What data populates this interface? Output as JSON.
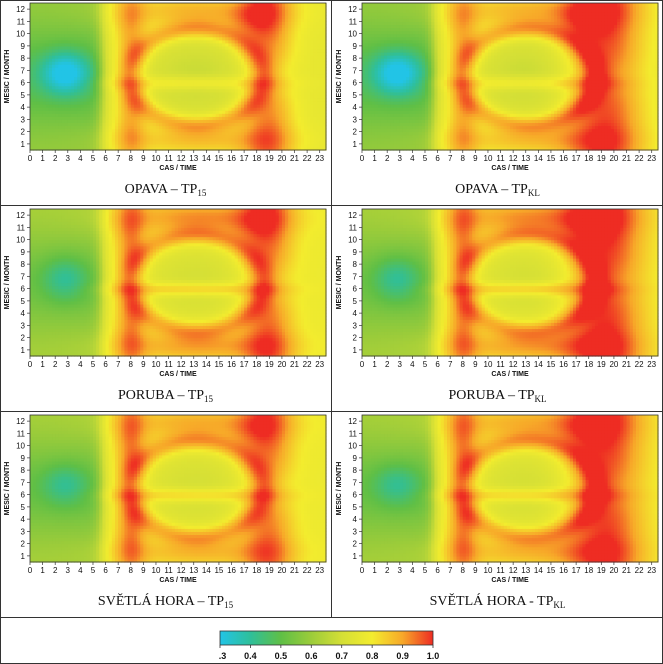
{
  "chart_data": [
    {
      "type": "heatmap",
      "caption_main": "OPAVA – TP",
      "caption_sub": "15",
      "xlabel": "CAS / TIME",
      "ylabel": "MESIC / MONTH",
      "x_ticks": [
        "0",
        "1",
        "2",
        "3",
        "4",
        "5",
        "6",
        "7",
        "8",
        "9",
        "10",
        "11",
        "12",
        "13",
        "14",
        "15",
        "16",
        "17",
        "18",
        "19",
        "20",
        "21",
        "22",
        "23"
      ],
      "y_ticks": [
        "1",
        "2",
        "3",
        "4",
        "5",
        "6",
        "7",
        "8",
        "9",
        "10",
        "11",
        "12"
      ],
      "xlim": [
        0,
        23.5
      ],
      "ylim": [
        0.5,
        12.5
      ],
      "site": "opava",
      "variant": "tp15"
    },
    {
      "type": "heatmap",
      "caption_main": "OPAVA – TP",
      "caption_sub": "KL",
      "xlabel": "CAS / TIME",
      "ylabel": "MESIC / MONTH",
      "x_ticks": [
        "0",
        "1",
        "2",
        "3",
        "4",
        "5",
        "6",
        "7",
        "8",
        "9",
        "10",
        "11",
        "12",
        "13",
        "14",
        "15",
        "16",
        "17",
        "18",
        "19",
        "20",
        "21",
        "22",
        "23"
      ],
      "y_ticks": [
        "1",
        "2",
        "3",
        "4",
        "5",
        "6",
        "7",
        "8",
        "9",
        "10",
        "11",
        "12"
      ],
      "xlim": [
        0,
        23.5
      ],
      "ylim": [
        0.5,
        12.5
      ],
      "site": "opava",
      "variant": "tpkl"
    },
    {
      "type": "heatmap",
      "caption_main": "PORUBA – TP",
      "caption_sub": "15",
      "xlabel": "CAS / TIME",
      "ylabel": "MESIC / MONTH",
      "x_ticks": [
        "0",
        "1",
        "2",
        "3",
        "4",
        "5",
        "6",
        "7",
        "8",
        "9",
        "10",
        "11",
        "12",
        "13",
        "14",
        "15",
        "16",
        "17",
        "18",
        "19",
        "20",
        "21",
        "22",
        "23"
      ],
      "y_ticks": [
        "1",
        "2",
        "3",
        "4",
        "5",
        "6",
        "7",
        "8",
        "9",
        "10",
        "11",
        "12"
      ],
      "xlim": [
        0,
        23.5
      ],
      "ylim": [
        0.5,
        12.5
      ],
      "site": "poruba",
      "variant": "tp15"
    },
    {
      "type": "heatmap",
      "caption_main": "PORUBA – TP",
      "caption_sub": "KL",
      "xlabel": "CAS / TIME",
      "ylabel": "MESIC / MONTH",
      "x_ticks": [
        "0",
        "1",
        "2",
        "3",
        "4",
        "5",
        "6",
        "7",
        "8",
        "9",
        "10",
        "11",
        "12",
        "13",
        "14",
        "15",
        "16",
        "17",
        "18",
        "19",
        "20",
        "21",
        "22",
        "23"
      ],
      "y_ticks": [
        "1",
        "2",
        "3",
        "4",
        "5",
        "6",
        "7",
        "8",
        "9",
        "10",
        "11",
        "12"
      ],
      "xlim": [
        0,
        23.5
      ],
      "ylim": [
        0.5,
        12.5
      ],
      "site": "poruba",
      "variant": "tpkl"
    },
    {
      "type": "heatmap",
      "caption_main": "SVĚTLÁ HORA – TP",
      "caption_sub": "15",
      "xlabel": "CAS / TIME",
      "ylabel": "MESIC / MONTH",
      "x_ticks": [
        "0",
        "1",
        "2",
        "3",
        "4",
        "5",
        "6",
        "7",
        "8",
        "9",
        "10",
        "11",
        "12",
        "13",
        "14",
        "15",
        "16",
        "17",
        "18",
        "19",
        "20",
        "21",
        "22",
        "23"
      ],
      "y_ticks": [
        "1",
        "2",
        "3",
        "4",
        "5",
        "6",
        "7",
        "8",
        "9",
        "10",
        "11",
        "12"
      ],
      "xlim": [
        0,
        23.5
      ],
      "ylim": [
        0.5,
        12.5
      ],
      "site": "svetla",
      "variant": "tp15"
    },
    {
      "type": "heatmap",
      "caption_main": "SVĚTLÁ HORA - TP",
      "caption_sub": "KL",
      "xlabel": "CAS / TIME",
      "ylabel": "MESIC / MONTH",
      "x_ticks": [
        "0",
        "1",
        "2",
        "3",
        "4",
        "5",
        "6",
        "7",
        "8",
        "9",
        "10",
        "11",
        "12",
        "13",
        "14",
        "15",
        "16",
        "17",
        "18",
        "19",
        "20",
        "21",
        "22",
        "23"
      ],
      "y_ticks": [
        "1",
        "2",
        "3",
        "4",
        "5",
        "6",
        "7",
        "8",
        "9",
        "10",
        "11",
        "12"
      ],
      "xlim": [
        0,
        23.5
      ],
      "ylim": [
        0.5,
        12.5
      ],
      "site": "svetla",
      "variant": "tpkl"
    }
  ],
  "colorbar": {
    "ticks": [
      "0.3",
      "0.4",
      "0.5",
      "0.6",
      "0.7",
      "0.8",
      "0.9",
      "1.0"
    ],
    "range": [
      0.3,
      1.0
    ],
    "colors": [
      "#22c4e6",
      "#2fbf9a",
      "#5fbf46",
      "#9ccc3a",
      "#d4df36",
      "#f3ec2e",
      "#f7a829",
      "#ee2c23"
    ]
  }
}
